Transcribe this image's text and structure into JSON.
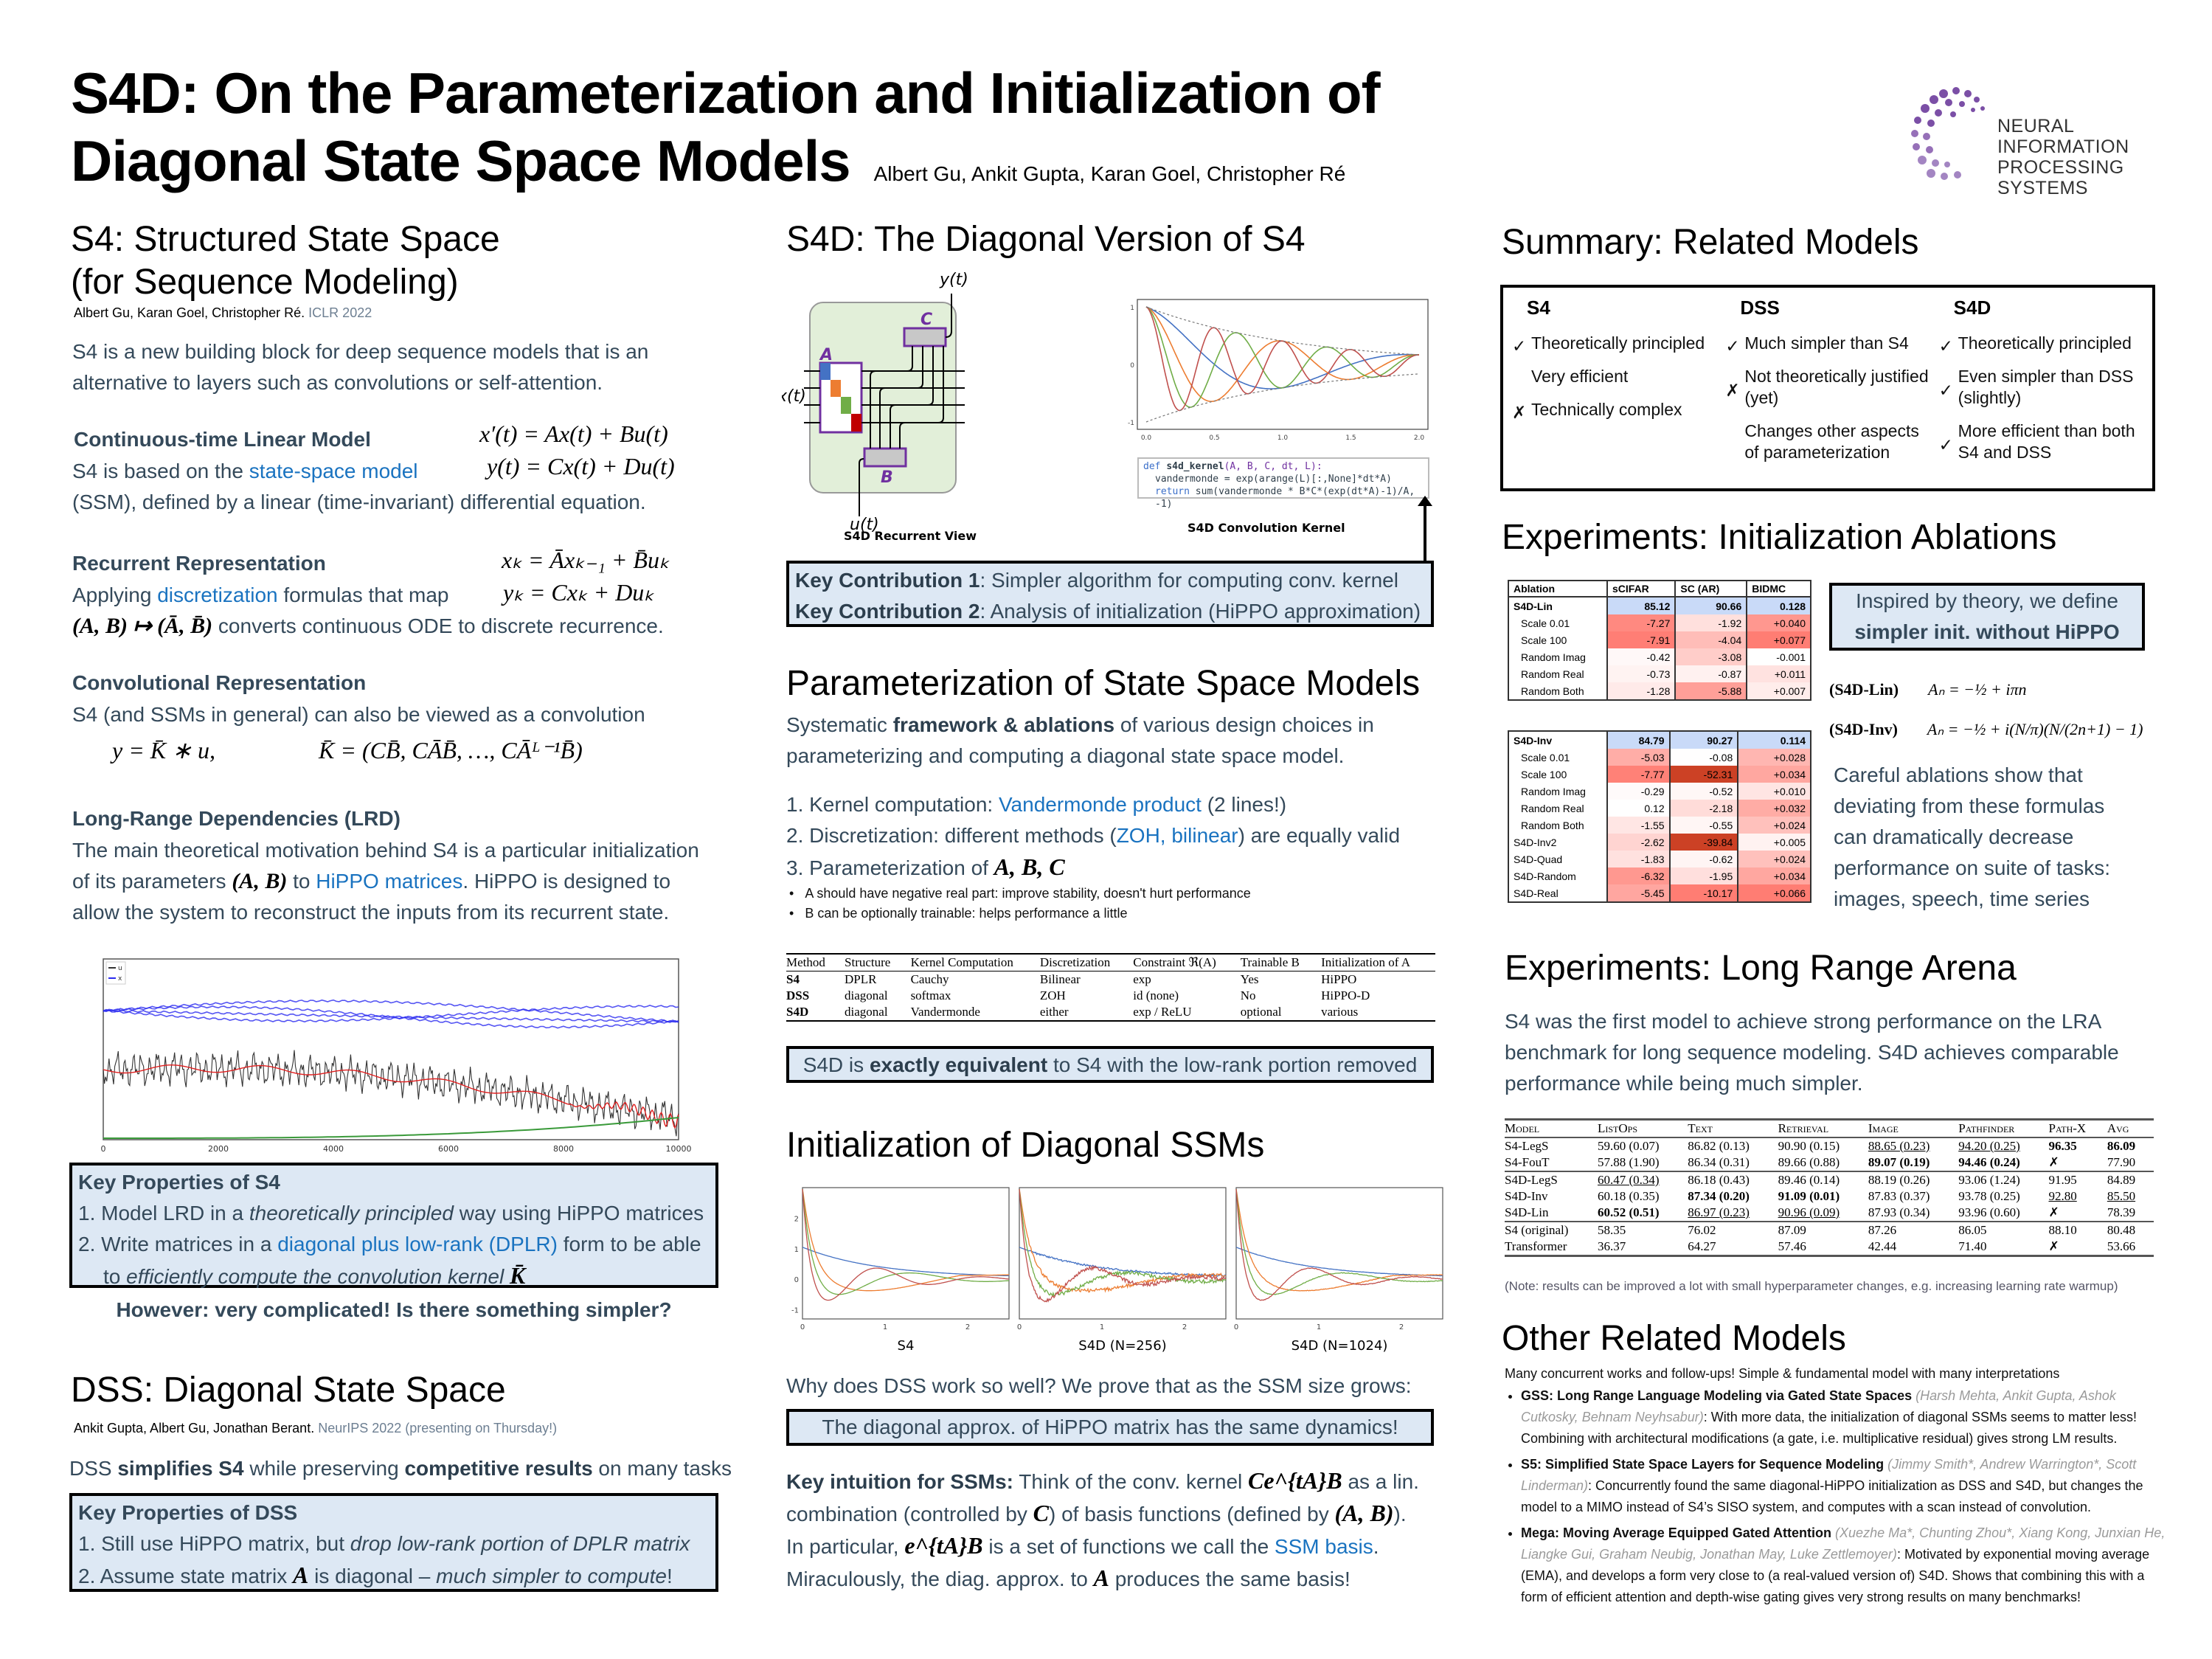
{
  "header": {
    "title_line1": "S4D: On the Parameterization and Initialization of",
    "title_line2": "Diagonal State Space Models",
    "authors": "Albert Gu, Ankit Gupta, Karan Goel, Christopher Ré",
    "logo_line1": "NEURAL INFORMATION",
    "logo_line2": "PROCESSING SYSTEMS",
    "logo_color": "#7b4fa6"
  },
  "s4": {
    "title_line1": "S4: Structured State Space",
    "title_line2": "(for Sequence Modeling)",
    "cite_authors": "Albert Gu, Karan Goel, Christopher Ré.",
    "cite_venue": "ICLR 2022",
    "intro": "S4 is a new building block for deep sequence models that is an alternative to layers such as convolutions or self-attention.",
    "ct_heading": "Continuous-time Linear Model",
    "ct_text_pre": "S4 is based on the",
    "ct_link": "state-space model",
    "ct_text_post": "(SSM), defined by a linear (time-invariant) differential equation.",
    "ct_eq1": "x′(t) = Ax(t) + Bu(t)",
    "ct_eq2": "y(t) = Cx(t) + Du(t)",
    "rec_heading": "Recurrent Representation",
    "rec_text_pre": "Applying",
    "rec_link": "discretization",
    "rec_text_mid": "formulas that map",
    "rec_map": "(A, B) ↦ (Ā, B̄)",
    "rec_text_post": "converts continuous ODE to discrete recurrence.",
    "rec_eq1": "xₖ = Āxₖ₋₁ + B̄uₖ",
    "rec_eq2": "yₖ = Cxₖ + Duₖ",
    "conv_heading": "Convolutional Representation",
    "conv_text": "S4 (and SSMs in general) can also be viewed as a convolution",
    "conv_eq1": "y = K̄ ∗ u,",
    "conv_eq2": "K̄ = (CB̄, CĀB̄, …, CĀᴸ⁻¹B̄)",
    "lrd_heading": "Long-Range Dependencies (LRD)",
    "lrd_text1": "The main theoretical motivation behind S4 is a particular initialization of its parameters",
    "lrd_ab": "(A, B)",
    "lrd_to": "to",
    "lrd_link": "HiPPO matrices",
    "lrd_text2": ". HiPPO is designed to allow the system to reconstruct the inputs from its recurrent state.",
    "key_title": "Key Properties of S4",
    "key1_pre": "1. Model LRD in a",
    "key1_it": "theoretically principled",
    "key1_post": "way using HiPPO matrices",
    "key2_pre": "2. Write matrices in a",
    "key2_link": "diagonal plus low-rank (DPLR)",
    "key2_post": "form to be able",
    "key2_line2_pre": "to",
    "key2_line2_it": "efficiently compute the convolution kernel",
    "key2_k": "K̄",
    "however": "However: very complicated! Is there something simpler?"
  },
  "hippo_plot": {
    "legend": [
      "u",
      "x"
    ],
    "xticks": [
      "0",
      "2000",
      "4000",
      "6000",
      "8000",
      "10000"
    ],
    "colors": {
      "u": "#333333",
      "x": "#2b2bf0",
      "recon": "#e02020",
      "measure": "#3a9a3a"
    }
  },
  "dss": {
    "title": "DSS: Diagonal State Space",
    "cite_authors": "Ankit Gupta, Albert Gu, Jonathan Berant.",
    "cite_venue": "NeurIPS 2022 (presenting on Thursday!)",
    "intro_a": "DSS",
    "intro_b": "simplifies S4",
    "intro_c": "while preserving",
    "intro_d": "competitive results",
    "intro_e": "on many tasks",
    "key_title": "Key Properties of DSS",
    "key1_pre": "1. Still use HiPPO matrix, but",
    "key1_it": "drop low-rank portion of DPLR matrix",
    "key2_pre": "2. Assume state matrix",
    "key2_a": "A",
    "key2_mid": "is diagonal –",
    "key2_it": "much simpler to compute",
    "key2_end": "!"
  },
  "s4d": {
    "title": "S4D: The Diagonal Version of S4",
    "diagram": {
      "y": "y(t)",
      "x": "x(t)",
      "u": "u(t)",
      "A": "A",
      "B": "B",
      "C": "C",
      "caption": "S4D Recurrent View",
      "diag_colors": [
        "#4472c4",
        "#ed7d31",
        "#70ad47",
        "#c00000"
      ]
    },
    "kernel": {
      "caption": "S4D Convolution Kernel",
      "yticks": [
        "1",
        "0",
        "-1"
      ],
      "xticks": [
        "0.0",
        "0.5",
        "1.0",
        "1.5",
        "2.0"
      ],
      "code_line1_kw": "def",
      "code_line1_fn": "s4d_kernel",
      "code_line1_args": "(A, B, C, dt, L):",
      "code_line2": "vandermonde = exp(arange(L)[:,None]*dt*A)",
      "code_line3_kw": "return",
      "code_line3": "sum(vandermonde * B*C*(exp(dt*A)-1)/A, -1)"
    },
    "contrib1_label": "Key Contribution 1",
    "contrib1_text": ": Simpler algorithm for computing conv. kernel",
    "contrib2_label": "Key Contribution 2",
    "contrib2_text": ": Analysis of initialization (HiPPO approximation)"
  },
  "param": {
    "title": "Parameterization of State Space Models",
    "intro_pre": "Systematic",
    "intro_b": "framework & ablations",
    "intro_post": "of various design choices in parameterizing and computing a diagonal state space model.",
    "item1_pre": "1. Kernel computation:",
    "item1_link": "Vandermonde product",
    "item1_post": "(2 lines!)",
    "item2_pre": "2. Discretization: different methods (",
    "item2_link": "ZOH, bilinear",
    "item2_post": ") are equally valid",
    "item3_pre": "3. Parameterization of",
    "item3_math": "A, B, C",
    "bullet1": "A should have negative real part: improve stability, doesn't hurt performance",
    "bullet2": "B can be optionally trainable: helps performance a little",
    "table": {
      "headers": [
        "Method",
        "Structure",
        "Kernel Computation",
        "Discretization",
        "Constraint ℜ(A)",
        "Trainable B",
        "Initialization of A"
      ],
      "rows": [
        [
          "S4",
          "DPLR",
          "Cauchy",
          "Bilinear",
          "exp",
          "Yes",
          "HiPPO"
        ],
        [
          "DSS",
          "diagonal",
          "softmax",
          "ZOH",
          "id (none)",
          "No",
          "HiPPO-D"
        ],
        [
          "S4D",
          "diagonal",
          "Vandermonde",
          "either",
          "exp / ReLU",
          "optional",
          "various"
        ]
      ]
    },
    "equiv_pre": "S4D is",
    "equiv_b": "exactly equivalent",
    "equiv_post": "to S4 with the low-rank portion removed"
  },
  "init": {
    "title": "Initialization of Diagonal SSMs",
    "plots": [
      {
        "caption": "S4",
        "yticks": [
          "2",
          "1",
          "0",
          "-1"
        ],
        "xticks": [
          "0",
          "1",
          "2"
        ]
      },
      {
        "caption": "S4D (N=256)",
        "xticks": [
          "0",
          "1",
          "2"
        ]
      },
      {
        "caption": "S4D (N=1024)",
        "xticks": [
          "0",
          "1",
          "2"
        ]
      }
    ],
    "why": "Why does DSS work so well? We prove that as the SSM size grows:",
    "box": "The diagonal approx. of HiPPO matrix has the same dynamics!",
    "intuition_b": "Key intuition for SSMs:",
    "intuition_1": "Think of the conv. kernel",
    "intuition_k": "Ce^{tA}B",
    "intuition_2": "as a lin. combination (controlled by",
    "intuition_c": "C",
    "intuition_3": ") of basis functions (defined by",
    "intuition_ab": "(A, B)",
    "intuition_4": ").",
    "intuition_5": "In particular,",
    "intuition_basis": "e^{tA}B",
    "intuition_6": "is a set of functions we call the",
    "intuition_link": "SSM basis",
    "intuition_7": ".",
    "intuition_8": "Miraculously, the diag. approx. to",
    "intuition_a": "A",
    "intuition_9": "produces the same basis!"
  },
  "summary": {
    "title": "Summary: Related Models",
    "columns": [
      {
        "name": "S4",
        "items": [
          {
            "mark": "check",
            "text": "Theoretically principled"
          },
          {
            "mark": "none",
            "text": "Very efficient"
          },
          {
            "mark": "cross",
            "text": "Technically complex"
          }
        ]
      },
      {
        "name": "DSS",
        "items": [
          {
            "mark": "check",
            "text": "Much simpler than S4"
          },
          {
            "mark": "cross",
            "text": "Not theoretically justified (yet)"
          },
          {
            "mark": "none",
            "text": "Changes other aspects of parameterization"
          }
        ]
      },
      {
        "name": "S4D",
        "items": [
          {
            "mark": "check",
            "text": "Theoretically principled"
          },
          {
            "mark": "check",
            "text": "Even simpler than DSS (slightly)"
          },
          {
            "mark": "check",
            "text": "More efficient than both S4 and DSS"
          }
        ]
      }
    ]
  },
  "ablations": {
    "title": "Experiments: Initialization Ablations",
    "headers": [
      "Ablation",
      "sCIFAR",
      "SC (AR)",
      "BIDMC"
    ],
    "table1": [
      {
        "name": "S4D-Lin",
        "vals": [
          "85.12",
          "90.66",
          "0.128"
        ],
        "base": true
      },
      {
        "name": "Scale 0.01",
        "vals": [
          "-7.27",
          "-1.92",
          "+0.040"
        ],
        "indent": true
      },
      {
        "name": "Scale 100",
        "vals": [
          "-7.91",
          "-4.04",
          "+0.077"
        ],
        "indent": true
      },
      {
        "name": "Random Imag",
        "vals": [
          "-0.42",
          "-3.08",
          "-0.001"
        ],
        "indent": true
      },
      {
        "name": "Random Real",
        "vals": [
          "-0.73",
          "-0.87",
          "+0.011"
        ],
        "indent": true
      },
      {
        "name": "Random Both",
        "vals": [
          "-1.28",
          "-5.88",
          "+0.007"
        ],
        "indent": true
      }
    ],
    "table2": [
      {
        "name": "S4D-Inv",
        "vals": [
          "84.79",
          "90.27",
          "0.114"
        ],
        "base": true
      },
      {
        "name": "Scale 0.01",
        "vals": [
          "-5.03",
          "-0.08",
          "+0.028"
        ],
        "indent": true
      },
      {
        "name": "Scale 100",
        "vals": [
          "-7.77",
          "-52.31",
          "+0.034"
        ],
        "indent": true
      },
      {
        "name": "Random Imag",
        "vals": [
          "-0.29",
          "-0.52",
          "+0.010"
        ],
        "indent": true
      },
      {
        "name": "Random Real",
        "vals": [
          "0.12",
          "-2.18",
          "+0.032"
        ],
        "indent": true
      },
      {
        "name": "Random Both",
        "vals": [
          "-1.55",
          "-0.55",
          "+0.024"
        ],
        "indent": true
      },
      {
        "name": "S4D-Inv2",
        "vals": [
          "-2.62",
          "-39.84",
          "+0.005"
        ]
      },
      {
        "name": "S4D-Quad",
        "vals": [
          "-1.83",
          "-0.62",
          "+0.024"
        ]
      },
      {
        "name": "S4D-Random",
        "vals": [
          "-6.32",
          "-1.95",
          "+0.034"
        ]
      },
      {
        "name": "S4D-Real",
        "vals": [
          "-5.45",
          "-10.17",
          "+0.066"
        ]
      }
    ],
    "inspired_line1": "Inspired by theory, we define",
    "inspired_line2": "simpler init. without HiPPO",
    "lin_label": "(S4D-Lin)",
    "lin_eq": "Aₙ = −½ + iπn",
    "inv_label": "(S4D-Inv)",
    "inv_eq": "Aₙ = −½ + i(N/π)(N/(2n+1) − 1)",
    "careful": "Careful ablations show that deviating from these formulas can dramatically decrease performance on suite of tasks: images, speech, time series"
  },
  "lra": {
    "title": "Experiments: Long Range Arena",
    "intro": "S4 was the first model to achieve strong performance on the LRA benchmark for long sequence modeling. S4D achieves comparable performance while being much simpler.",
    "headers": [
      "Model",
      "ListOps",
      "Text",
      "Retrieval",
      "Image",
      "Pathfinder",
      "Path-X",
      "Avg"
    ],
    "groups": [
      [
        [
          "S4-LegS",
          "59.60 (0.07)",
          "86.82 (0.13)",
          "90.90 (0.15)",
          "88.65 (0.23)",
          "94.20 (0.25)",
          "96.35",
          "86.09"
        ],
        [
          "S4-FouT",
          "57.88 (1.90)",
          "86.34 (0.31)",
          "89.66 (0.88)",
          "89.07 (0.19)",
          "94.46 (0.24)",
          "✗",
          "77.90"
        ]
      ],
      [
        [
          "S4D-LegS",
          "60.47 (0.34)",
          "86.18 (0.43)",
          "89.46 (0.14)",
          "88.19 (0.26)",
          "93.06 (1.24)",
          "91.95",
          "84.89"
        ],
        [
          "S4D-Inv",
          "60.18 (0.35)",
          "87.34 (0.20)",
          "91.09 (0.01)",
          "87.83 (0.37)",
          "93.78 (0.25)",
          "92.80",
          "85.50"
        ],
        [
          "S4D-Lin",
          "60.52 (0.51)",
          "86.97 (0.23)",
          "90.96 (0.09)",
          "87.93 (0.34)",
          "93.96 (0.60)",
          "✗",
          "78.39"
        ]
      ],
      [
        [
          "S4 (original)",
          "58.35",
          "76.02",
          "87.09",
          "87.26",
          "86.05",
          "88.10",
          "80.48"
        ],
        [
          "Transformer",
          "36.37",
          "64.27",
          "57.46",
          "42.44",
          "71.40",
          "✗",
          "53.66"
        ]
      ]
    ],
    "bold": [
      "0-0-6",
      "0-0-7",
      "0-1-4",
      "0-1-5",
      "1-1-2",
      "1-1-3",
      "1-2-1"
    ],
    "underline": [
      "0-0-4",
      "0-0-5",
      "1-0-1",
      "1-1-6",
      "1-1-7",
      "1-2-2",
      "1-2-3"
    ],
    "note": "(Note: results can be improved a lot with small hyperparameter changes, e.g. increasing learning rate warmup)"
  },
  "related": {
    "title": "Other Related Models",
    "intro": "Many concurrent works and follow-ups! Simple & fundamental model with many interpretations",
    "items": [
      {
        "title": "GSS: Long Range Language Modeling via Gated State Spaces",
        "authors": "(Harsh Mehta, Ankit Gupta, Ashok Cutkosky, Behnam Neyhsabur)",
        "text": ": With more data, the initialization of diagonal SSMs seems to matter less! Combining with architectural modifications (a gate, i.e. multiplicative residual) gives strong LM results."
      },
      {
        "title": "S5: Simplified State Space Layers for Sequence Modeling",
        "authors": "(Jimmy Smith*, Andrew Warrington*, Scott Linderman)",
        "text": ": Concurrently found the same diagonal-HiPPO initialization as DSS and S4D, but changes the model to a MIMO instead of S4’s SISO system, and computes with a scan instead of convolution."
      },
      {
        "title": "Mega: Moving Average Equipped Gated Attention",
        "authors": "(Xuezhe Ma*, Chunting Zhou*, Xiang Kong, Junxian He, Liangke Gui, Graham Neubig, Jonathan May, Luke Zettlemoyer)",
        "text": ": Motivated by exponential moving average (EMA), and develops a form very close to (a real-valued version of) S4D. Shows that combining this with a form of efficient attention and depth-wise gating gives very strong results on many benchmarks!"
      }
    ]
  }
}
